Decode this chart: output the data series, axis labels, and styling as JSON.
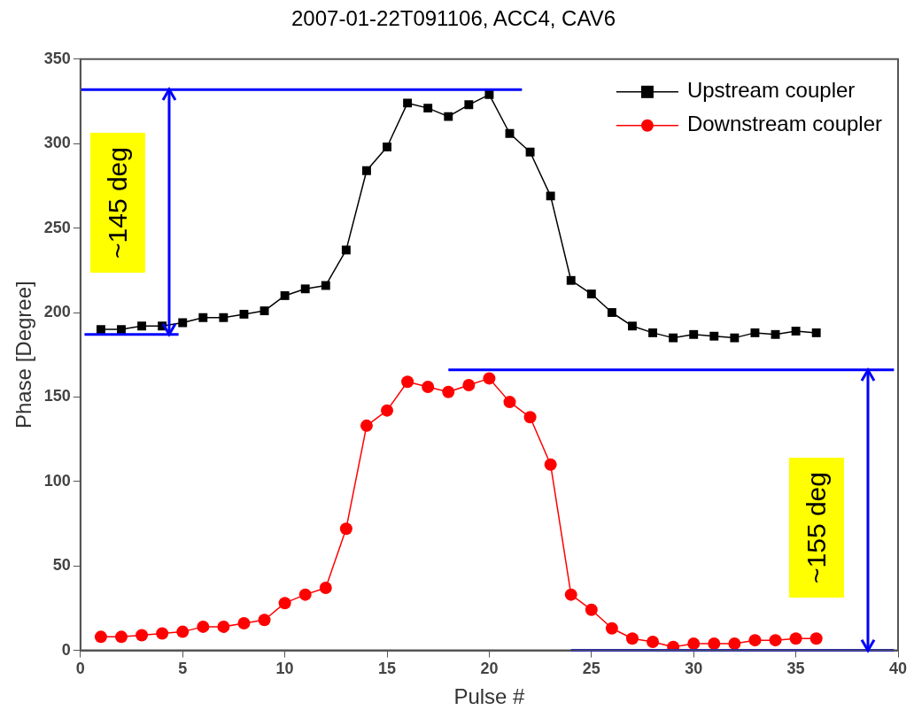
{
  "chart_data": {
    "type": "line",
    "title": "2007-01-22T091106, ACC4, CAV6",
    "xlabel": "Pulse #",
    "ylabel": "Phase [Degree]",
    "x": [
      1,
      2,
      3,
      4,
      5,
      6,
      7,
      8,
      9,
      10,
      11,
      12,
      13,
      14,
      15,
      16,
      17,
      18,
      19,
      20,
      21,
      22,
      23,
      24,
      25,
      26,
      27,
      28,
      29,
      30,
      31,
      32,
      33,
      34,
      35,
      36
    ],
    "series": [
      {
        "name": "Upstream coupler",
        "color": "#000000",
        "marker": "square",
        "values": [
          190,
          190,
          192,
          192,
          194,
          197,
          197,
          199,
          201,
          210,
          214,
          216,
          237,
          284,
          298,
          324,
          321,
          316,
          323,
          329,
          306,
          295,
          269,
          219,
          211,
          200,
          192,
          188,
          185,
          187,
          186,
          185,
          188,
          187,
          189,
          188
        ]
      },
      {
        "name": "Downstream coupler",
        "color": "#ff0000",
        "marker": "circle",
        "values": [
          8,
          8,
          9,
          10,
          11,
          14,
          14,
          16,
          18,
          28,
          33,
          37,
          72,
          133,
          142,
          159,
          156,
          153,
          157,
          161,
          147,
          138,
          110,
          33,
          24,
          13,
          7,
          5,
          2,
          4,
          4,
          4,
          6,
          6,
          7,
          7
        ]
      }
    ],
    "xlim": [
      0,
      40
    ],
    "xticks": [
      0,
      5,
      10,
      15,
      20,
      25,
      30,
      35,
      40
    ],
    "ylim": [
      0,
      350
    ],
    "yticks": [
      0,
      50,
      100,
      150,
      200,
      250,
      300,
      350
    ],
    "ref_lines": [
      {
        "axis": "y",
        "value": 332,
        "color": "#0000ff"
      },
      {
        "axis": "y",
        "value": 187,
        "color": "#0000ff"
      },
      {
        "axis": "y",
        "value": 166,
        "color": "#0000ff"
      },
      {
        "axis": "y",
        "value": 0,
        "color": "#0000ff"
      }
    ],
    "legend": "top right",
    "line_style": "solid",
    "annotations": [
      "~145 deg",
      "~155 deg"
    ]
  }
}
